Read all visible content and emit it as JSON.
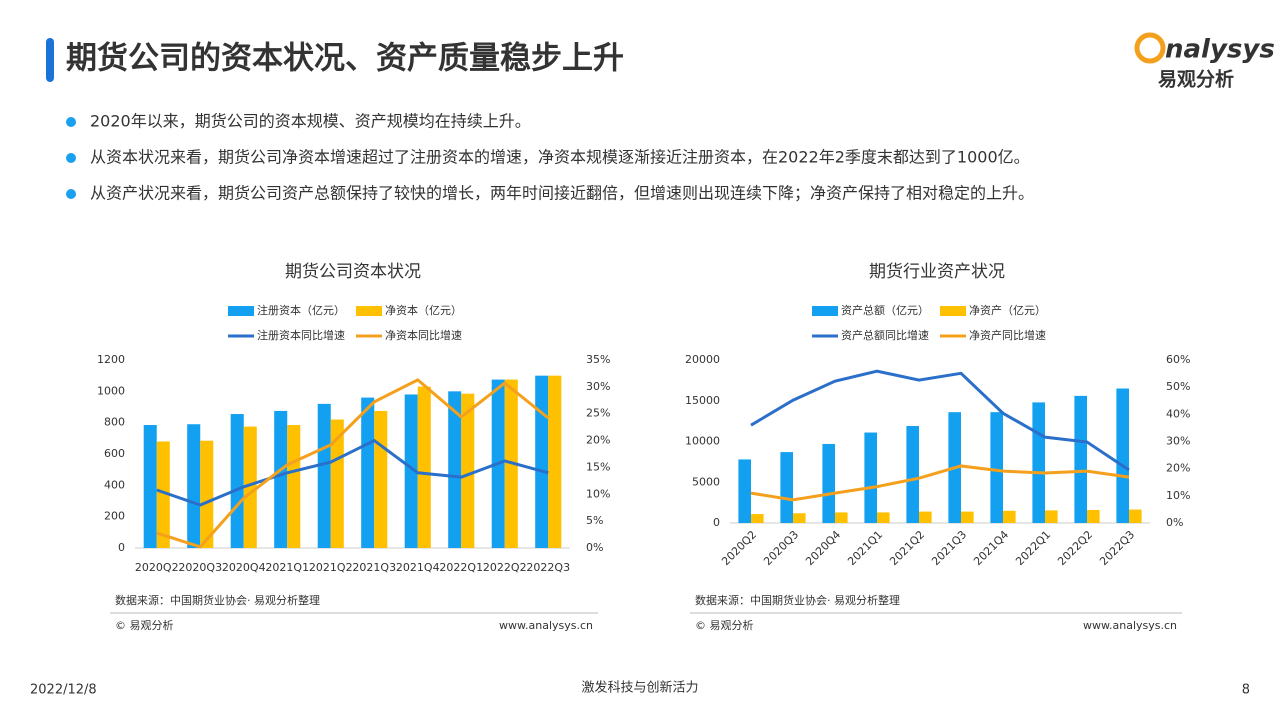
{
  "header": {
    "title": "期货公司的资本状况、资产质量稳步上升",
    "logo": "nalysys",
    "logo_sub": "易观分析"
  },
  "bullets": [
    "2020年以来，期货公司的资本规模、资产规模均在持续上升。",
    "从资本状况来看，期货公司净资本增速超过了注册资本的增速，净资本规模逐渐接近注册资本，在2022年2季度末都达到了1000亿。",
    "从资产状况来看，期货公司资产总额保持了较快的增长，两年时间接近翻倍，但增速则出现连续下降；净资产保持了相对稳定的上升。"
  ],
  "chart_data": [
    {
      "type": "combo",
      "title": "期货公司资本状况",
      "categories": [
        "2020Q2",
        "2020Q3",
        "2020Q4",
        "2021Q1",
        "2021Q2",
        "2021Q3",
        "2021Q4",
        "2022Q1",
        "2022Q2",
        "2022Q3"
      ],
      "series": [
        {
          "name": "注册资本（亿元）",
          "type": "bar",
          "color": "#14a0f0",
          "values": [
            785,
            790,
            855,
            875,
            920,
            960,
            980,
            1000,
            1075,
            1100
          ]
        },
        {
          "name": "净资本（亿元）",
          "type": "bar",
          "color": "#ffc000",
          "values": [
            680,
            685,
            775,
            785,
            820,
            875,
            1030,
            985,
            1075,
            1100
          ]
        },
        {
          "name": "注册资本同比增速",
          "type": "line",
          "axis": "y2",
          "color": "#2a6fc9",
          "values": [
            10.8,
            8,
            11.4,
            14,
            16,
            20,
            14,
            13.2,
            16.2,
            14
          ]
        },
        {
          "name": "净资本同比增速",
          "type": "line",
          "axis": "y2",
          "color": "#f5a01c",
          "values": [
            2.8,
            0.2,
            9.3,
            15.5,
            19.2,
            27.2,
            31.3,
            24.4,
            30.7,
            24.2
          ]
        }
      ],
      "ylim": [
        0,
        1200
      ],
      "yticks": [
        0,
        200,
        400,
        600,
        800,
        1000,
        1200
      ],
      "y2lim": [
        0,
        35
      ],
      "y2ticks": [
        {
          "value": 0,
          "label": "0%"
        },
        {
          "value": 5,
          "label": "5%"
        },
        {
          "value": 10,
          "label": "10%"
        },
        {
          "value": 15,
          "label": "15%"
        },
        {
          "value": 20,
          "label": "20%"
        },
        {
          "value": 25,
          "label": "25%"
        },
        {
          "value": 30,
          "label": "30%"
        },
        {
          "value": 35,
          "label": "35%"
        }
      ],
      "grid": false,
      "xlabel_rotate": false,
      "source": "数据来源：中国期货业协会· 易观分析整理",
      "copyright": "© 易观分析",
      "site": "www.analysys.cn"
    },
    {
      "type": "combo",
      "title": "期货行业资产状况",
      "categories": [
        "2020Q2",
        "2020Q3",
        "2020Q4",
        "2021Q1",
        "2021Q2",
        "2021Q3",
        "2021Q4",
        "2022Q1",
        "2022Q2",
        "2022Q3"
      ],
      "series": [
        {
          "name": "资产总额（亿元）",
          "type": "bar",
          "color": "#14a0f0",
          "values": [
            7800,
            8700,
            9700,
            11100,
            11900,
            13600,
            13600,
            14800,
            15600,
            16500
          ]
        },
        {
          "name": "净资产（亿元）",
          "type": "bar",
          "color": "#ffc000",
          "values": [
            1100,
            1200,
            1300,
            1300,
            1400,
            1400,
            1500,
            1550,
            1600,
            1650
          ]
        },
        {
          "name": "资产总额同比增速",
          "type": "line",
          "axis": "y2",
          "color": "#2a6fc9",
          "values": [
            36,
            45.2,
            52.2,
            55.9,
            52.6,
            55.1,
            40.4,
            31.6,
            29.8,
            19.5
          ]
        },
        {
          "name": "净资产同比增速",
          "type": "line",
          "axis": "y2",
          "color": "#f5a01c",
          "values": [
            11,
            8.5,
            11,
            13.4,
            16.5,
            21,
            19.1,
            18.4,
            19.1,
            16.9
          ]
        }
      ],
      "ylim": [
        0,
        20000
      ],
      "yticks": [
        0,
        5000,
        10000,
        15000,
        20000
      ],
      "y2lim": [
        0,
        60
      ],
      "y2ticks": [
        {
          "value": 0,
          "label": "0%"
        },
        {
          "value": 10,
          "label": "10%"
        },
        {
          "value": 20,
          "label": "20%"
        },
        {
          "value": 30,
          "label": "30%"
        },
        {
          "value": 40,
          "label": "40%"
        },
        {
          "value": 50,
          "label": "50%"
        },
        {
          "value": 60,
          "label": "60%"
        }
      ],
      "grid": false,
      "xlabel_rotate": true,
      "source": "数据来源：中国期货业协会· 易观分析整理",
      "copyright": "© 易观分析",
      "site": "www.analysys.cn"
    }
  ],
  "footer": {
    "date": "2022/12/8",
    "slogan": "激发科技与创新活力",
    "page": "8"
  }
}
